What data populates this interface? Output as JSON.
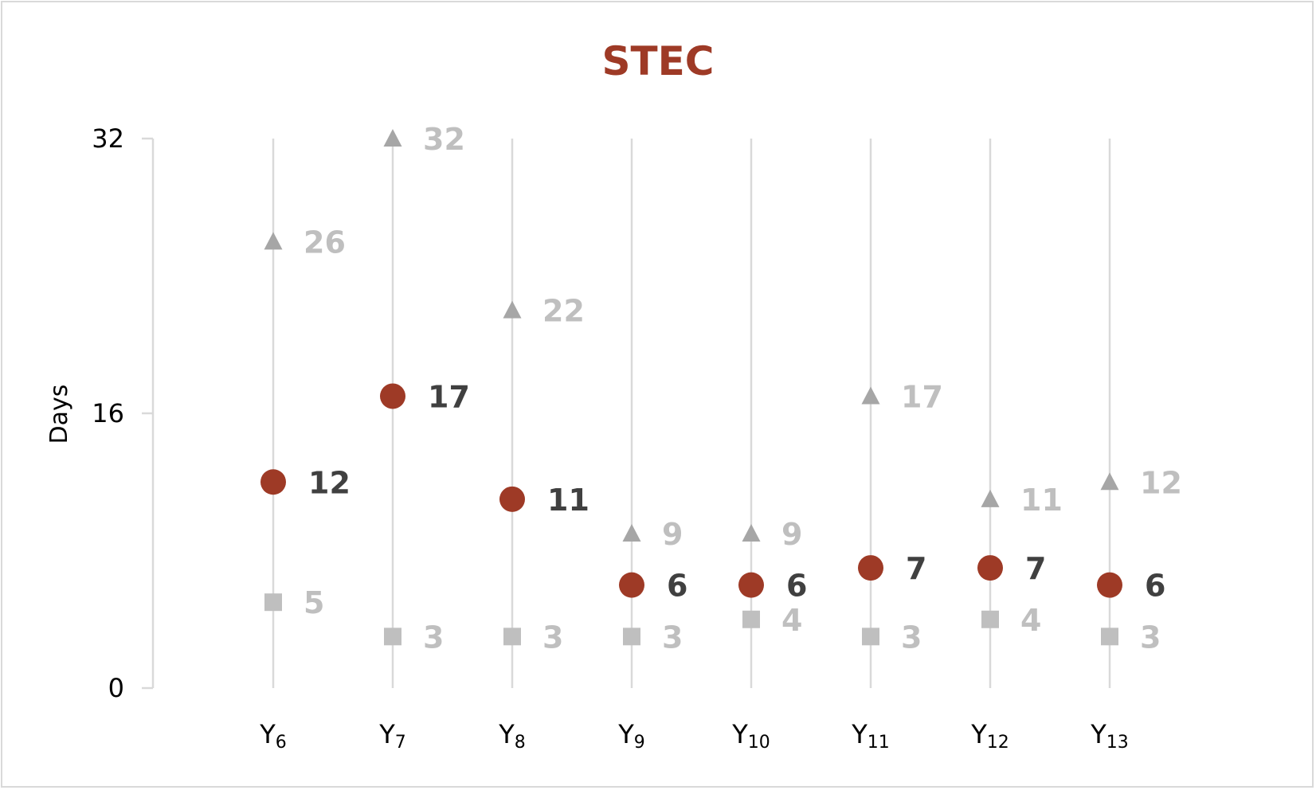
{
  "chart_data": {
    "type": "scatter",
    "title": "STEC",
    "ylabel": "Days",
    "xlabel": "",
    "ylim": [
      0,
      32
    ],
    "yticks": [
      "0",
      "16",
      "32"
    ],
    "categories": [
      {
        "base": "Y",
        "sub": "6"
      },
      {
        "base": "Y",
        "sub": "7"
      },
      {
        "base": "Y",
        "sub": "8"
      },
      {
        "base": "Y",
        "sub": "9"
      },
      {
        "base": "Y",
        "sub": "10"
      },
      {
        "base": "Y",
        "sub": "11"
      },
      {
        "base": "Y",
        "sub": "12"
      },
      {
        "base": "Y",
        "sub": "13"
      }
    ],
    "series": [
      {
        "role": "max",
        "marker": "triangle",
        "color": "#a6a6a6",
        "label_color": "#bfbfbf",
        "values": [
          26,
          32,
          22,
          9,
          9,
          17,
          11,
          12
        ]
      },
      {
        "role": "median",
        "marker": "circle",
        "color": "#9e3a26",
        "label_color": "#404040",
        "values": [
          12,
          17,
          11,
          6,
          6,
          7,
          7,
          6
        ]
      },
      {
        "role": "min",
        "marker": "square",
        "color": "#bfbfbf",
        "label_color": "#bfbfbf",
        "values": [
          5,
          3,
          3,
          3,
          4,
          3,
          4,
          3
        ]
      }
    ],
    "grid": false,
    "legend": "none",
    "colors": {
      "axis": "#d9d9d9",
      "stem": "#d9d9d9"
    }
  }
}
